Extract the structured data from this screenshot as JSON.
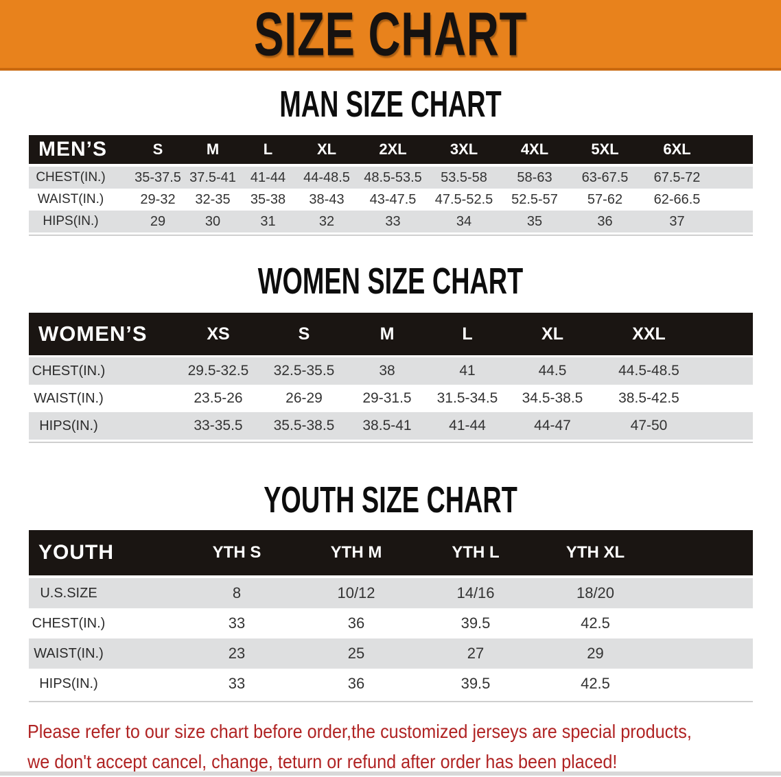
{
  "banner": {
    "title": "SIZE CHART"
  },
  "sections": {
    "men": {
      "heading": "MAN SIZE CHART"
    },
    "women": {
      "heading": "WOMEN SIZE CHART"
    },
    "youth": {
      "heading": "YOUTH SIZE CHART"
    }
  },
  "tables": {
    "men": {
      "label": "MEN’S",
      "sizes": [
        "S",
        "M",
        "L",
        "XL",
        "2XL",
        "3XL",
        "4XL",
        "5XL",
        "6XL"
      ],
      "rows": [
        {
          "label": "CHEST(IN.)",
          "values": [
            "35-37.5",
            "37.5-41",
            "41-44",
            "44-48.5",
            "48.5-53.5",
            "53.5-58",
            "58-63",
            "63-67.5",
            "67.5-72"
          ]
        },
        {
          "label": "WAIST(IN.)",
          "values": [
            "29-32",
            "32-35",
            "35-38",
            "38-43",
            "43-47.5",
            "47.5-52.5",
            "52.5-57",
            "57-62",
            "62-66.5"
          ]
        },
        {
          "label": "HIPS(IN.)",
          "values": [
            "29",
            "30",
            "31",
            "32",
            "33",
            "34",
            "35",
            "36",
            "37"
          ]
        }
      ]
    },
    "women": {
      "label": "WOMEN’S",
      "sizes": [
        "XS",
        "S",
        "M",
        "L",
        "XL",
        "XXL"
      ],
      "rows": [
        {
          "label": "CHEST(IN.)",
          "values": [
            "29.5-32.5",
            "32.5-35.5",
            "38",
            "41",
            "44.5",
            "44.5-48.5"
          ]
        },
        {
          "label": "WAIST(IN.)",
          "values": [
            "23.5-26",
            "26-29",
            "29-31.5",
            "31.5-34.5",
            "34.5-38.5",
            "38.5-42.5"
          ]
        },
        {
          "label": "HIPS(IN.)",
          "values": [
            "33-35.5",
            "35.5-38.5",
            "38.5-41",
            "41-44",
            "44-47",
            "47-50"
          ]
        }
      ]
    },
    "youth": {
      "label": "YOUTH",
      "sizes": [
        "YTH S",
        "YTH M",
        "YTH L",
        "YTH XL"
      ],
      "rows": [
        {
          "label": "U.S.SIZE",
          "values": [
            "8",
            "10/12",
            "14/16",
            "18/20"
          ]
        },
        {
          "label": "CHEST(IN.)",
          "values": [
            "33",
            "36",
            "39.5",
            "42.5"
          ]
        },
        {
          "label": "WAIST(IN.)",
          "values": [
            "23",
            "25",
            "27",
            "29"
          ]
        },
        {
          "label": "HIPS(IN.)",
          "values": [
            "33",
            "36",
            "39.5",
            "42.5"
          ]
        }
      ]
    }
  },
  "disclaimer": {
    "line1": "Please refer to our size chart before order,the customized jerseys are special products,",
    "line2": "we don't accept cancel, change, teturn or refund after order has been placed!",
    "color": "#B02323"
  },
  "colors": {
    "banner_orange": "#E8821C",
    "banner_edge": "#C9690F",
    "header_bar_black": "#1A1512",
    "row_stripe_gray": "#DEDFE0",
    "bottom_bar_gray": "#D8D8D8"
  }
}
